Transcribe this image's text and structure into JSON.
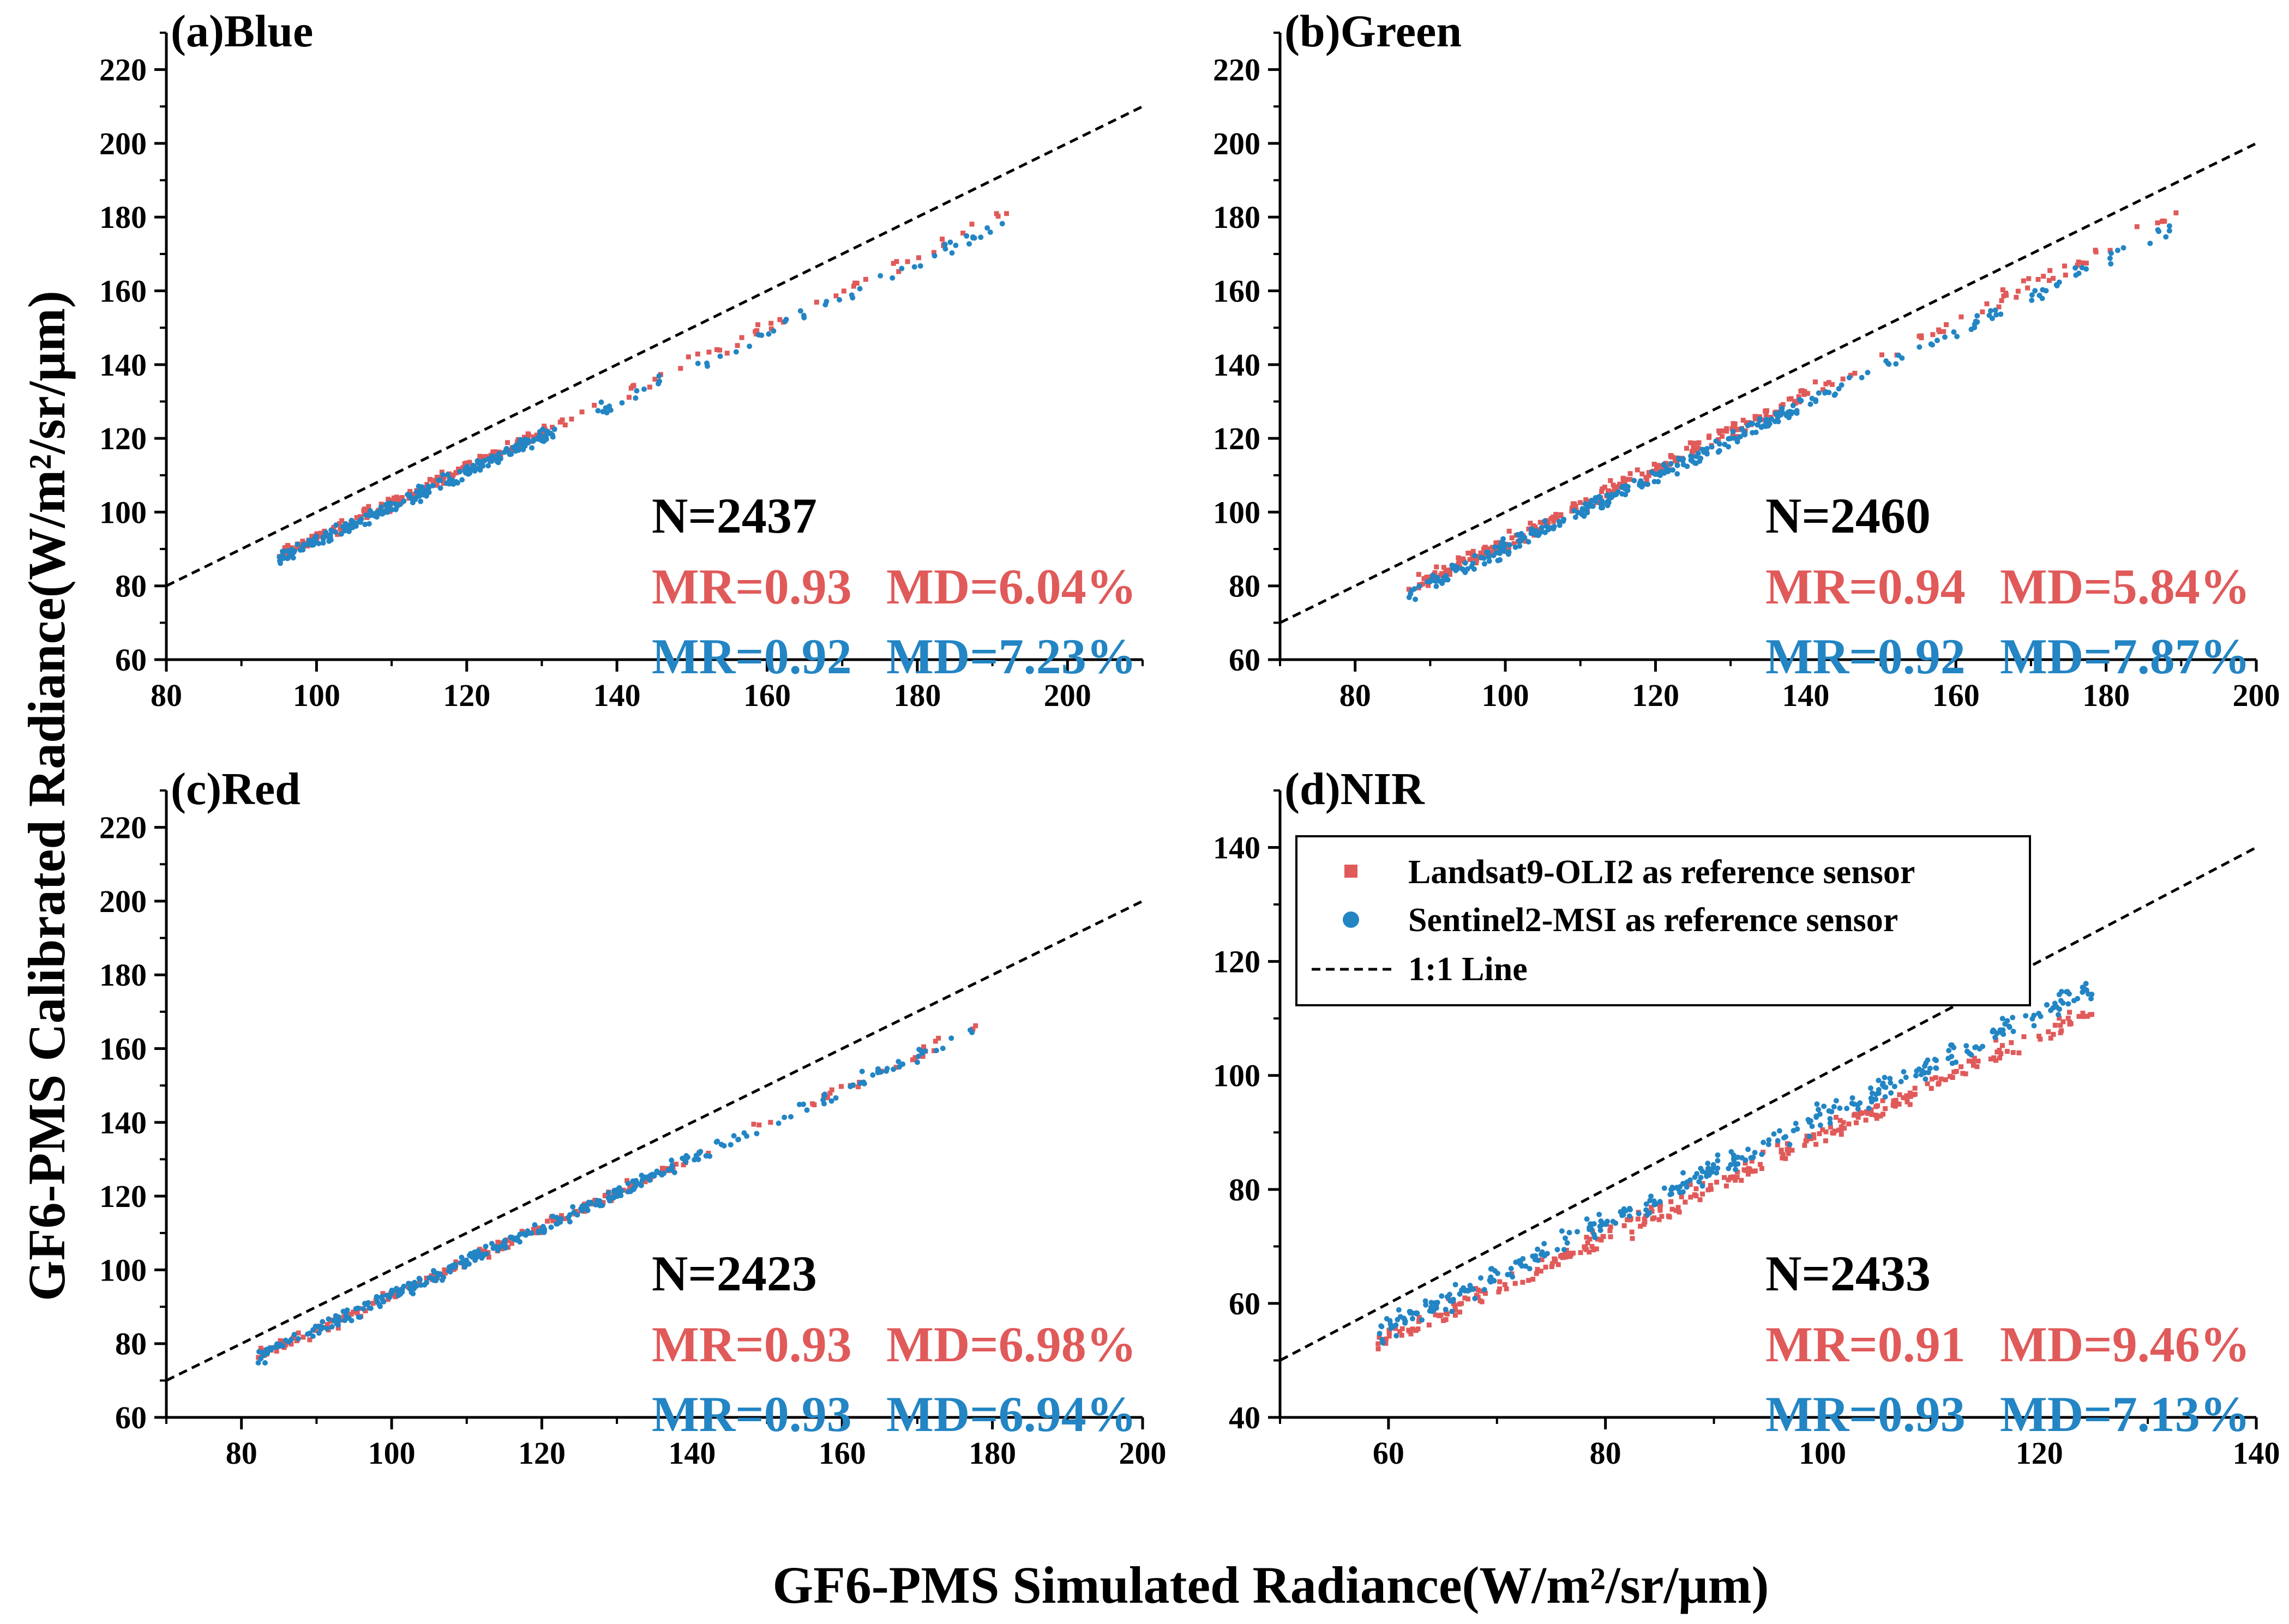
{
  "chart_data": {
    "type": "scatter",
    "x_axis_title": "GF6-PMS Simulated Radiance(W/m²/sr/μm)",
    "y_axis_title": "GF6-PMS Calibrated Radiance(W/m²/sr/μm)",
    "colors": {
      "landsat": "#e05a5a",
      "sentinel": "#2385c4",
      "line": "#000000"
    },
    "legend": {
      "placement": "inside panel (d), top-left",
      "entries": [
        {
          "key": "landsat",
          "label": "Landsat9-OLI2 as reference sensor",
          "marker": "square"
        },
        {
          "key": "sentinel",
          "label": "Sentinel2-MSI as reference sensor",
          "marker": "circle"
        },
        {
          "key": "line",
          "label": "1:1 Line",
          "marker": "dashed-line"
        }
      ]
    },
    "panels": [
      {
        "id": "a",
        "title": "(a)Blue",
        "xlim": [
          80,
          210
        ],
        "ylim": [
          60,
          230
        ],
        "xticks": [
          80,
          100,
          120,
          140,
          160,
          180,
          200
        ],
        "yticks": [
          60,
          80,
          100,
          120,
          140,
          160,
          180,
          200,
          220
        ],
        "n_label": "N=2437",
        "stats": [
          {
            "series": "landsat",
            "mr": "MR=0.93",
            "md": "MD=6.04%"
          },
          {
            "series": "sentinel",
            "mr": "MR=0.92",
            "md": "MD=7.23%"
          }
        ],
        "series": [
          {
            "name": "landsat",
            "x_range": [
              95,
              193
            ],
            "dense_until": 132,
            "slope": 0.955,
            "intercept": -2.5,
            "spread": 1.6,
            "n": 260
          },
          {
            "name": "sentinel",
            "x_range": [
              95,
              193
            ],
            "dense_until": 132,
            "slope": 0.945,
            "intercept": -2.5,
            "spread": 1.8,
            "n": 300
          }
        ]
      },
      {
        "id": "b",
        "title": "(b)Green",
        "xlim": [
          70,
          200
        ],
        "ylim": [
          60,
          230
        ],
        "xticks": [
          80,
          100,
          120,
          140,
          160,
          180,
          200
        ],
        "yticks": [
          60,
          80,
          100,
          120,
          140,
          160,
          180,
          200,
          220
        ],
        "n_label": "N=2460",
        "stats": [
          {
            "series": "landsat",
            "mr": "MR=0.94",
            "md": "MD=5.84%"
          },
          {
            "series": "sentinel",
            "mr": "MR=0.92",
            "md": "MD=7.87%"
          }
        ],
        "series": [
          {
            "name": "landsat",
            "x_range": [
              87,
              190
            ],
            "dense_until": 140,
            "slope": 0.995,
            "intercept": -7.5,
            "spread": 2.0,
            "n": 280
          },
          {
            "name": "sentinel",
            "x_range": [
              87,
              190
            ],
            "dense_until": 140,
            "slope": 0.975,
            "intercept": -7.0,
            "spread": 2.0,
            "n": 320
          }
        ]
      },
      {
        "id": "c",
        "title": "(c)Red",
        "xlim": [
          70,
          200
        ],
        "ylim": [
          60,
          230
        ],
        "xticks": [
          80,
          100,
          120,
          140,
          160,
          180,
          200
        ],
        "yticks": [
          60,
          80,
          100,
          120,
          140,
          160,
          180,
          200,
          220
        ],
        "n_label": "N=2423",
        "stats": [
          {
            "series": "landsat",
            "mr": "MR=0.93",
            "md": "MD=6.98%"
          },
          {
            "series": "sentinel",
            "mr": "MR=0.93",
            "md": "MD=6.94%"
          }
        ],
        "series": [
          {
            "name": "landsat",
            "x_range": [
              82,
              178
            ],
            "dense_until": 140,
            "slope": 0.93,
            "intercept": 0.0,
            "spread": 1.6,
            "n": 200
          },
          {
            "name": "sentinel",
            "x_range": [
              82,
              178
            ],
            "dense_until": 140,
            "slope": 0.93,
            "intercept": 0.0,
            "spread": 1.8,
            "n": 320
          }
        ]
      },
      {
        "id": "d",
        "title": "(d)NIR",
        "xlim": [
          50,
          140
        ],
        "ylim": [
          40,
          150
        ],
        "xticks": [
          60,
          80,
          100,
          120,
          140
        ],
        "yticks": [
          40,
          60,
          80,
          100,
          120,
          140
        ],
        "n_label": "N=2433",
        "stats": [
          {
            "series": "landsat",
            "mr": "MR=0.91",
            "md": "MD=9.46%"
          },
          {
            "series": "sentinel",
            "mr": "MR=0.93",
            "md": "MD=7.13%"
          }
        ],
        "series": [
          {
            "name": "landsat",
            "x_range": [
              59,
              125
            ],
            "dense_until": 110,
            "slope": 0.89,
            "intercept": 0.5,
            "spread": 1.8,
            "n": 300
          },
          {
            "name": "sentinel",
            "x_range": [
              59,
              125
            ],
            "dense_until": 110,
            "slope": 0.92,
            "intercept": 0.6,
            "spread": 1.9,
            "n": 340
          }
        ]
      }
    ]
  }
}
